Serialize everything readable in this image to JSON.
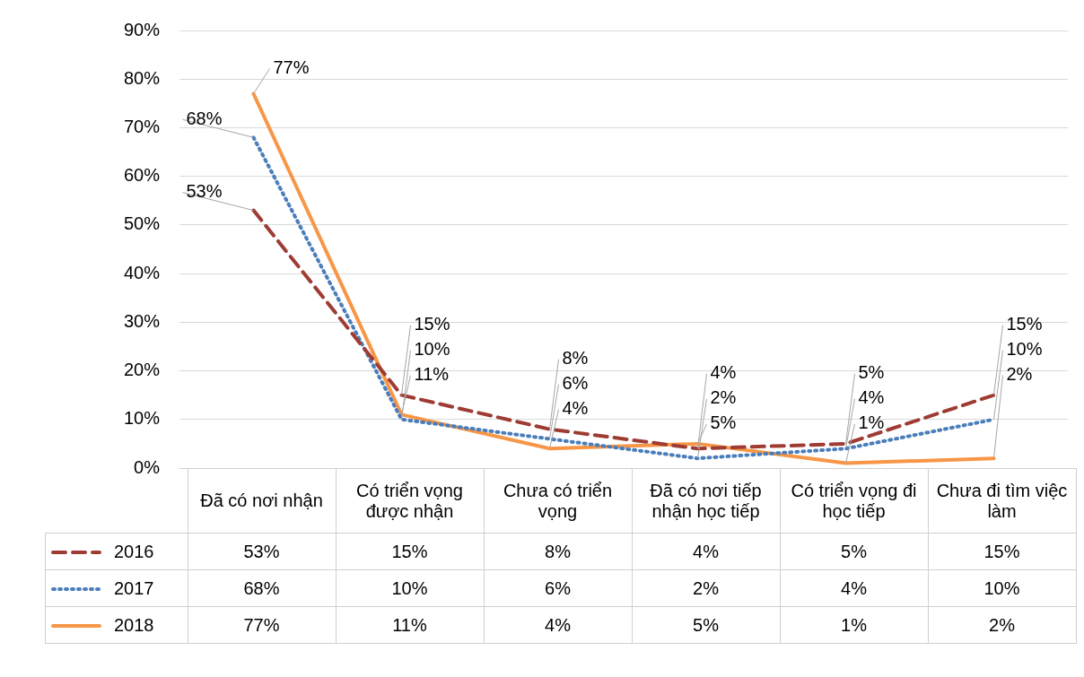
{
  "chart_data": {
    "type": "line",
    "categories": [
      "Đã có nơi nhận",
      "Có triển vọng được nhận",
      "Chưa có triển vọng",
      "Đã có nơi tiếp nhận học tiếp",
      "Có triển vọng đi học tiếp",
      "Chưa đi tìm việc làm"
    ],
    "series": [
      {
        "name": "2016",
        "color": "#9e3b33",
        "line_style": "dashed",
        "values": [
          53,
          15,
          8,
          4,
          5,
          15
        ],
        "value_labels": [
          "53%",
          "15%",
          "8%",
          "4%",
          "5%",
          "15%"
        ]
      },
      {
        "name": "2017",
        "color": "#4a7ebb",
        "line_style": "dotted",
        "values": [
          68,
          10,
          6,
          2,
          4,
          10
        ],
        "value_labels": [
          "68%",
          "10%",
          "6%",
          "2%",
          "4%",
          "10%"
        ]
      },
      {
        "name": "2018",
        "color": "#f79646",
        "line_style": "solid",
        "values": [
          77,
          11,
          4,
          5,
          1,
          2
        ],
        "value_labels": [
          "77%",
          "11%",
          "4%",
          "5%",
          "1%",
          "2%"
        ]
      }
    ],
    "ylim": [
      0,
      90
    ],
    "yticks": [
      {
        "value": 0,
        "label": "0%"
      },
      {
        "value": 10,
        "label": "10%"
      },
      {
        "value": 20,
        "label": "20%"
      },
      {
        "value": 30,
        "label": "30%"
      },
      {
        "value": 40,
        "label": "40%"
      },
      {
        "value": 50,
        "label": "50%"
      },
      {
        "value": 60,
        "label": "60%"
      },
      {
        "value": 70,
        "label": "70%"
      },
      {
        "value": 80,
        "label": "80%"
      },
      {
        "value": 90,
        "label": "90%"
      }
    ],
    "grid": "y",
    "legend": "bottom",
    "marker": "none"
  }
}
